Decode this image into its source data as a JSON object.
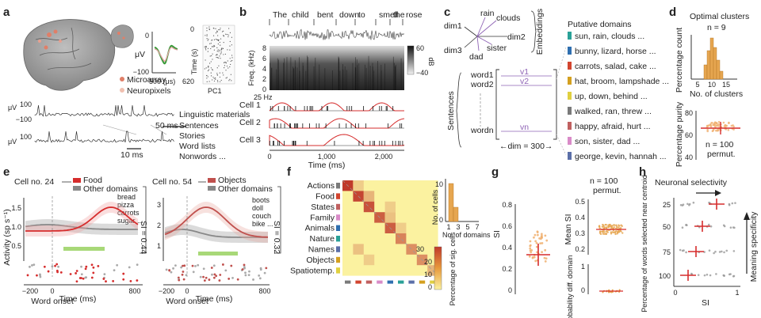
{
  "panels": {
    "a": {
      "letter": "a",
      "y_unit": "μV",
      "inset_yticks": [
        "0",
        "−100"
      ],
      "inset_xlabel": "500 (μs)",
      "time_label": "Time (s)",
      "time_ticks": [
        "0",
        "620"
      ],
      "pc_label": "PC1",
      "legend": [
        "Microarray",
        "Neuropixels"
      ],
      "trace_yticks": [
        "100",
        "−100"
      ],
      "scale1": "50 ms",
      "scale2": "10 ms",
      "materials_title": "Linguistic materials",
      "materials": [
        "Sentences",
        "Stories",
        "Word lists",
        "Nonwords ..."
      ]
    },
    "b": {
      "letter": "b",
      "words": [
        "The",
        "child",
        "bent",
        "down",
        "to",
        "smell",
        "the",
        "rose"
      ],
      "freq_label": "Freq. (kHz)",
      "freq_ticks": [
        "8",
        "6",
        "4",
        "2",
        "0"
      ],
      "colorbar_ticks": [
        "60",
        "−40"
      ],
      "colorbar_unit": "dB",
      "rate_label": "25 Hz",
      "cells": [
        "Cell 1",
        "Cell 2",
        "Cell 3"
      ],
      "x_ticks": [
        "0",
        "1,000",
        "2,000"
      ],
      "xlabel": "Time (ms)"
    },
    "c": {
      "letter": "c",
      "dims": [
        "dim1",
        "dim2",
        "dim3"
      ],
      "embed_words": [
        "rain",
        "clouds",
        "sister",
        "dad"
      ],
      "embeddings_label": "Embeddings",
      "sentences_label": "Sentences",
      "word_labels": [
        "word1",
        "word2",
        "wordn"
      ],
      "vec_labels": [
        "v1",
        "v2",
        "vn"
      ],
      "dim_label": "←dim = 300→",
      "domains_title": "Putative domains",
      "domains": [
        {
          "text": "sun, rain, clouds ...",
          "color": "#2aa198"
        },
        {
          "text": "bunny, lizard, horse ...",
          "color": "#2f6fb0"
        },
        {
          "text": "carrots, salad, cake ...",
          "color": "#d2452f"
        },
        {
          "text": "hat, broom, lampshade ...",
          "color": "#d4a020"
        },
        {
          "text": "up, down, behind ...",
          "color": "#e0d040"
        },
        {
          "text": "walked, ran, threw ...",
          "color": "#7a7a7a"
        },
        {
          "text": "happy, afraid, hurt ...",
          "color": "#c06060"
        },
        {
          "text": "son, sister, dad ...",
          "color": "#d98bc8"
        },
        {
          "text": "george, kevin, hannah ...",
          "color": "#5b6fa8"
        }
      ]
    },
    "d": {
      "letter": "d",
      "title": "Optimal clusters",
      "n_label": "n = 9",
      "hist_ylabel": "Percentage count",
      "hist_xticks": [
        "5",
        "10",
        "15"
      ],
      "hist_xlabel": "No. of clusters",
      "purity_ylabel": "Percentage purity",
      "purity_yticks": [
        "80",
        "60",
        "40"
      ],
      "purity_note": "n = 100",
      "purity_note2": "permut."
    },
    "e": {
      "letter": "e",
      "left": {
        "cell": "Cell no. 24",
        "legend": [
          "Food",
          "Other domains"
        ],
        "colors": [
          "#d62d2d",
          "#888888"
        ],
        "examples": [
          "bread",
          "pizza",
          "carrots",
          "sugar ..."
        ],
        "si": "SI = 0.44",
        "yticks": [
          "1.5",
          "1.0",
          "0.5"
        ],
        "ylabel": "Activity (sp s⁻¹)"
      },
      "right": {
        "cell": "Cell no. 54",
        "legend": [
          "Objects",
          "Other domains"
        ],
        "colors": [
          "#c0504d",
          "#888888"
        ],
        "examples": [
          "boots",
          "doll",
          "couch",
          "bike ..."
        ],
        "si": "SI = 0.32",
        "yticks": [
          "3",
          "2",
          "1"
        ]
      },
      "xticks": [
        "−200",
        "0",
        "800"
      ],
      "xlabel": "Time (ms)",
      "onset_label": "Word onset"
    },
    "f": {
      "letter": "f",
      "rows": [
        "Actions",
        "Food",
        "States",
        "Family",
        "Animals",
        "Nature",
        "Names",
        "Objects",
        "Spatiotemp."
      ],
      "row_colors": [
        "#7a7a7a",
        "#d2452f",
        "#c06060",
        "#d98bc8",
        "#2f6fb0",
        "#2aa198",
        "#5b6fa8",
        "#d4a020",
        "#e0d040"
      ],
      "matrix": [
        [
          30,
          6,
          0,
          0,
          0,
          0,
          0,
          0,
          0
        ],
        [
          0,
          28,
          10,
          0,
          0,
          0,
          0,
          0,
          0
        ],
        [
          0,
          0,
          26,
          0,
          6,
          0,
          0,
          0,
          0
        ],
        [
          0,
          0,
          0,
          24,
          8,
          0,
          0,
          0,
          0
        ],
        [
          0,
          0,
          0,
          0,
          24,
          6,
          0,
          0,
          0
        ],
        [
          0,
          0,
          0,
          0,
          0,
          18,
          0,
          0,
          0
        ],
        [
          0,
          8,
          0,
          0,
          0,
          0,
          16,
          0,
          0
        ],
        [
          0,
          0,
          6,
          0,
          0,
          0,
          0,
          16,
          0
        ],
        [
          0,
          0,
          0,
          0,
          0,
          0,
          0,
          0,
          10
        ]
      ],
      "colorbar_ticks": [
        "30",
        "20",
        "10",
        "0"
      ],
      "colorbar_label": "Percentage of sig. cells",
      "hist_ylabel": "No. of cells",
      "hist_yticks": [
        "10",
        "0"
      ],
      "hist_xticks": [
        "1",
        "3",
        "5",
        "7"
      ],
      "hist_xlabel": "No. of domains"
    },
    "g": {
      "letter": "g",
      "si_label": "SI",
      "si_ticks": [
        "0.8",
        "0.6",
        "0.4",
        "0.2",
        "0"
      ],
      "n_label": "n = 100",
      "n_label2": "permut.",
      "mean_si_label": "Mean SI",
      "mean_ticks": [
        "0.5",
        "0.4",
        "0.3",
        "0.2"
      ],
      "prob_label": "Probability diff. domain",
      "prob_ticks": [
        "1",
        "0"
      ]
    },
    "h": {
      "letter": "h",
      "selectivity_label": "Neuronal selectivity",
      "ylabel": "Percentage of words selected near centroid",
      "yticks": [
        "25",
        "50",
        "75",
        "100"
      ],
      "xticks": [
        "0",
        "1"
      ],
      "xlabel": "SI",
      "specificity_label": "Meaning specificity"
    }
  }
}
